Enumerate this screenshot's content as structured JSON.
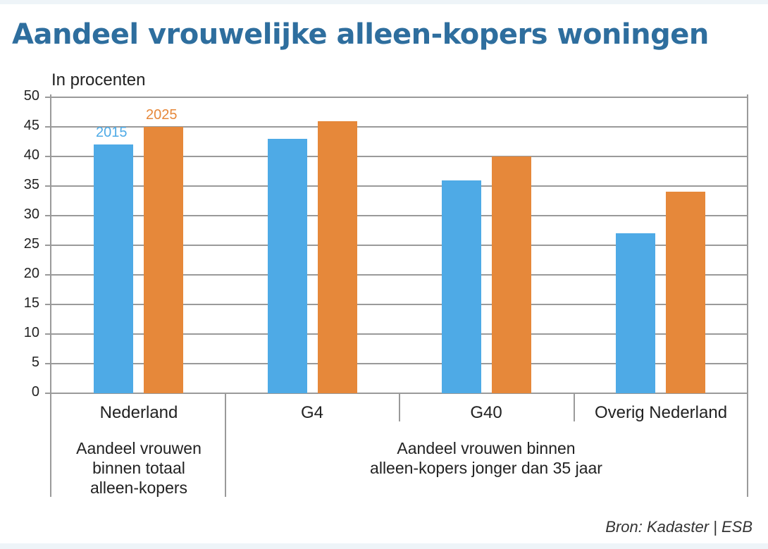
{
  "title": "Aandeel vrouwelijke alleen-kopers woningen",
  "unit_label": "In procenten",
  "source": "Bron: Kadaster | ESB",
  "colors": {
    "series_2015": "#4eaae6",
    "series_2025": "#e6883a",
    "title": "#2e6e9e",
    "grid": "#9a9a9a"
  },
  "legend": {
    "label_2015": "2015",
    "label_2025": "2025"
  },
  "categories": [
    {
      "label": "Nederland"
    },
    {
      "label": "G4"
    },
    {
      "label": "G40"
    },
    {
      "label": "Overig Nederland"
    }
  ],
  "group_notes": {
    "left": [
      "Aandeel vrouwen",
      "binnen totaal",
      "alleen-kopers"
    ],
    "right": [
      "Aandeel vrouwen binnen",
      "alleen-kopers jonger dan 35 jaar"
    ]
  },
  "chart_data": {
    "type": "bar",
    "title": "Aandeel vrouwelijke alleen-kopers woningen",
    "subtitle": "In procenten",
    "xlabel": "",
    "ylabel": "In procenten",
    "categories": [
      "Nederland",
      "G4",
      "G40",
      "Overig Nederland"
    ],
    "series": [
      {
        "name": "2015",
        "color": "#4eaae6",
        "values": [
          42,
          43,
          36,
          27
        ]
      },
      {
        "name": "2025",
        "color": "#e6883a",
        "values": [
          45,
          46,
          40,
          34
        ]
      }
    ],
    "ylim": [
      0,
      50
    ],
    "yticks": [
      0,
      5,
      10,
      15,
      20,
      25,
      30,
      35,
      40,
      45,
      50
    ],
    "grid": true,
    "legend_position": "inline labels above first category bars",
    "annotations": [
      "Nederland: Aandeel vrouwen binnen totaal alleen-kopers",
      "G4, G40, Overig Nederland: Aandeel vrouwen binnen alleen-kopers jonger dan 35 jaar"
    ],
    "source": "Bron: Kadaster | ESB"
  }
}
